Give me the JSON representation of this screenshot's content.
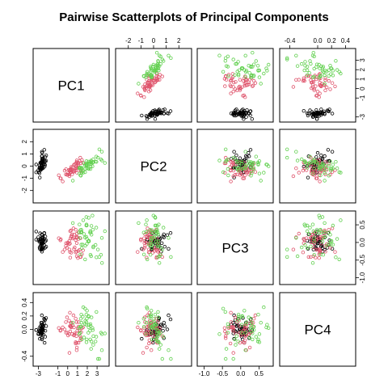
{
  "chart_data": {
    "type": "scatter",
    "title": "Pairwise Scatterplots of Principal Components",
    "variables": [
      "PC1",
      "PC2",
      "PC3",
      "PC4"
    ],
    "axis_ticks": {
      "PC1": [
        -3,
        -1,
        0,
        1,
        2,
        3
      ],
      "PC2": [
        -2,
        -1,
        0,
        1,
        2
      ],
      "PC3": [
        -1.0,
        -0.5,
        0.0,
        0.5
      ],
      "PC4": [
        -0.4,
        0.0,
        0.2,
        0.4
      ]
    },
    "axis_tick_labels": {
      "PC1": [
        "-3",
        "-1",
        "0",
        "1",
        "2",
        "3"
      ],
      "PC2": [
        "-2",
        "-1",
        "0",
        "1",
        "2"
      ],
      "PC3": [
        "-1.0",
        "-0.5",
        "0.0",
        "0.5"
      ],
      "PC4": [
        "-0.4",
        "0.0",
        "0.2",
        "0.4"
      ]
    },
    "axis_ranges": {
      "PC1": [
        -3.2,
        3.9
      ],
      "PC2": [
        -2.75,
        2.75
      ],
      "PC3": [
        -1.1,
        0.8
      ],
      "PC4": [
        -0.5,
        0.5
      ]
    },
    "series_colors": [
      "#000000",
      "#DF536B",
      "#61D04F"
    ],
    "series": [
      {
        "color": "#000000",
        "points": [
          [
            -2.68,
            0.32,
            -0.03,
            0.0
          ],
          [
            -2.71,
            -0.18,
            -0.21,
            0.1
          ],
          [
            -2.89,
            -0.14,
            0.02,
            0.02
          ],
          [
            -2.75,
            -0.32,
            0.03,
            -0.08
          ],
          [
            -2.73,
            0.33,
            0.09,
            -0.06
          ],
          [
            -2.28,
            0.74,
            0.17,
            -0.02
          ],
          [
            -2.82,
            -0.09,
            0.26,
            -0.05
          ],
          [
            -2.63,
            0.16,
            -0.02,
            -0.05
          ],
          [
            -2.89,
            -0.58,
            0.02,
            -0.03
          ],
          [
            -2.67,
            -0.11,
            -0.2,
            -0.06
          ],
          [
            -2.51,
            0.65,
            -0.02,
            0.05
          ],
          [
            -2.61,
            0.01,
            0.05,
            -0.15
          ],
          [
            -2.79,
            -0.24,
            -0.1,
            0.05
          ],
          [
            -3.22,
            -0.51,
            0.08,
            -0.01
          ],
          [
            -2.64,
            1.18,
            -0.18,
            0.21
          ],
          [
            -2.39,
            1.34,
            0.27,
            0.15
          ],
          [
            -2.62,
            0.82,
            0.14,
            0.1
          ],
          [
            -2.65,
            0.31,
            0.03,
            0.02
          ],
          [
            -2.2,
            0.88,
            -0.12,
            0.05
          ],
          [
            -2.59,
            0.51,
            0.1,
            -0.01
          ],
          [
            -2.31,
            0.39,
            -0.15,
            0.14
          ],
          [
            -2.54,
            0.43,
            0.15,
            0.0
          ],
          [
            -3.22,
            0.13,
            0.31,
            -0.01
          ],
          [
            -2.3,
            0.1,
            0.03,
            -0.11
          ],
          [
            -2.36,
            -0.04,
            0.1,
            -0.2
          ],
          [
            -2.51,
            -0.15,
            -0.19,
            -0.02
          ],
          [
            -2.47,
            0.13,
            0.06,
            -0.08
          ],
          [
            -2.56,
            0.36,
            -0.01,
            0.01
          ],
          [
            -2.64,
            0.31,
            -0.07,
            0.06
          ],
          [
            -2.63,
            -0.19,
            0.06,
            -0.07
          ],
          [
            -2.59,
            -0.2,
            -0.02,
            0.01
          ],
          [
            -2.41,
            0.41,
            -0.07,
            0.16
          ],
          [
            -2.65,
            0.81,
            0.23,
            -0.13
          ],
          [
            -2.6,
            1.09,
            0.21,
            0.0
          ],
          [
            -2.67,
            -0.12,
            -0.16,
            -0.02
          ],
          [
            -2.87,
            0.07,
            -0.14,
            -0.03
          ],
          [
            -2.63,
            0.6,
            -0.26,
            0.07
          ],
          [
            -2.8,
            0.27,
            0.1,
            0.0
          ],
          [
            -2.98,
            -0.49,
            0.07,
            -0.06
          ],
          [
            -2.59,
            0.23,
            0.06,
            0.04
          ],
          [
            -2.77,
            0.26,
            0.1,
            -0.08
          ],
          [
            -2.85,
            -0.94,
            -0.18,
            -0.14
          ],
          [
            -3.0,
            -0.34,
            0.15,
            -0.07
          ],
          [
            -2.41,
            0.19,
            0.26,
            0.09
          ],
          [
            -2.21,
            0.44,
            0.06,
            0.17
          ],
          [
            -2.71,
            -0.25,
            -0.05,
            -0.04
          ],
          [
            -2.54,
            0.5,
            0.1,
            0.03
          ],
          [
            -2.84,
            -0.23,
            0.05,
            -0.03
          ],
          [
            -2.54,
            0.58,
            -0.16,
            0.07
          ],
          [
            -2.7,
            0.11,
            -0.02,
            -0.05
          ]
        ]
      },
      {
        "color": "#DF536B",
        "points": [
          [
            1.28,
            0.69,
            -0.41,
            -0.1
          ],
          [
            0.93,
            0.32,
            -0.02,
            -0.2
          ],
          [
            1.46,
            0.5,
            -0.33,
            0.02
          ],
          [
            0.18,
            -0.83,
            -0.2,
            -0.35
          ],
          [
            1.09,
            0.07,
            -0.24,
            0.04
          ],
          [
            0.64,
            -0.42,
            0.14,
            -0.09
          ],
          [
            1.1,
            0.28,
            0.1,
            -0.2
          ],
          [
            -0.75,
            -1.0,
            0.06,
            -0.02
          ],
          [
            1.04,
            0.23,
            -0.44,
            0.02
          ],
          [
            -0.01,
            -0.72,
            -0.02,
            -0.05
          ],
          [
            -0.51,
            -1.26,
            -0.27,
            0.03
          ],
          [
            0.51,
            -0.1,
            0.11,
            0.06
          ],
          [
            0.26,
            -0.55,
            -0.43,
            -0.03
          ],
          [
            0.98,
            -0.12,
            0.15,
            -0.02
          ],
          [
            -0.17,
            -0.25,
            -0.02,
            -0.05
          ],
          [
            0.93,
            0.47,
            -0.39,
            -0.06
          ],
          [
            0.66,
            -0.35,
            0.22,
            -0.08
          ],
          [
            0.23,
            -0.33,
            -0.27,
            0.25
          ],
          [
            0.94,
            -0.54,
            0.25,
            -0.27
          ],
          [
            0.04,
            -0.58,
            0.0,
            -0.09
          ],
          [
            1.12,
            -0.08,
            0.29,
            0.11
          ],
          [
            0.36,
            -0.07,
            -0.29,
            0.03
          ],
          [
            1.3,
            -0.33,
            0.12,
            -0.16
          ],
          [
            0.92,
            -0.18,
            0.15,
            -0.31
          ],
          [
            0.71,
            0.15,
            -0.14,
            -0.06
          ],
          [
            0.9,
            0.33,
            -0.26,
            0.11
          ],
          [
            1.33,
            0.24,
            -0.41,
            -0.13
          ],
          [
            1.56,
            0.27,
            -0.22,
            0.03
          ],
          [
            0.81,
            -0.16,
            0.07,
            -0.19
          ],
          [
            -0.31,
            -0.37,
            -0.2,
            0.0
          ],
          [
            -0.07,
            -0.7,
            -0.15,
            0.18
          ],
          [
            -0.19,
            -0.68,
            -0.1,
            0.11
          ],
          [
            0.14,
            -0.31,
            -0.05,
            0.13
          ],
          [
            1.38,
            -0.42,
            0.29,
            -0.04
          ],
          [
            0.59,
            -0.48,
            0.4,
            0.21
          ],
          [
            0.81,
            0.2,
            0.36,
            0.16
          ],
          [
            1.22,
            0.41,
            -0.21,
            -0.02
          ],
          [
            0.81,
            -0.37,
            -0.28,
            -0.21
          ],
          [
            0.25,
            -0.27,
            0.32,
            0.05
          ],
          [
            0.16,
            -0.68,
            0.04,
            -0.07
          ],
          [
            0.46,
            -0.67,
            0.23,
            -0.07
          ],
          [
            0.89,
            -0.03,
            0.13,
            -0.1
          ],
          [
            0.23,
            -0.4,
            -0.03,
            0.05
          ],
          [
            -0.71,
            -1.01,
            0.09,
            -0.01
          ],
          [
            0.36,
            -0.5,
            0.16,
            0.04
          ],
          [
            0.33,
            -0.21,
            0.34,
            0.1
          ],
          [
            0.38,
            -0.29,
            0.19,
            0.09
          ],
          [
            0.64,
            0.11,
            -0.19,
            0.03
          ],
          [
            -0.91,
            -0.75,
            0.12,
            0.02
          ],
          [
            0.3,
            -0.35,
            0.12,
            0.05
          ]
        ]
      },
      {
        "color": "#61D04F",
        "points": [
          [
            2.53,
            -0.01,
            0.76,
            0.02
          ],
          [
            1.41,
            -0.57,
            0.3,
            0.1
          ],
          [
            2.62,
            0.34,
            -0.11,
            -0.1
          ],
          [
            1.97,
            -0.18,
            0.1,
            0.28
          ],
          [
            2.35,
            -0.04,
            0.28,
            0.05
          ],
          [
            3.4,
            0.55,
            -0.35,
            -0.05
          ],
          [
            0.52,
            -1.19,
            0.55,
            0.1
          ],
          [
            2.93,
            0.35,
            -0.42,
            0.26
          ],
          [
            2.32,
            -0.24,
            -0.35,
            0.08
          ],
          [
            2.92,
            0.78,
            0.42,
            -0.11
          ],
          [
            1.66,
            0.24,
            0.24,
            -0.12
          ],
          [
            1.8,
            -0.22,
            -0.09,
            0.13
          ],
          [
            2.17,
            0.22,
            0.03,
            0.07
          ],
          [
            1.34,
            -0.78,
            0.28,
            0.16
          ],
          [
            1.59,
            -0.54,
            0.63,
            0.33
          ],
          [
            1.9,
            0.12,
            0.48,
            0.22
          ],
          [
            1.95,
            0.04,
            -0.04,
            0.16
          ],
          [
            3.49,
            1.18,
            0.13,
            -0.31
          ],
          [
            3.8,
            0.26,
            0.32,
            -0.06
          ],
          [
            1.3,
            -0.76,
            -0.34,
            0.04
          ],
          [
            2.43,
            0.38,
            0.22,
            0.18
          ],
          [
            1.2,
            -0.61,
            0.51,
            -0.07
          ],
          [
            3.5,
            0.46,
            -0.58,
            -0.07
          ],
          [
            1.39,
            -0.2,
            -0.06,
            0.22
          ],
          [
            2.28,
            0.33,
            0.28,
            -0.02
          ],
          [
            2.61,
            0.56,
            -0.14,
            -0.23
          ],
          [
            1.26,
            -0.18,
            0.13,
            -0.05
          ],
          [
            1.29,
            -0.12,
            0.35,
            0.04
          ],
          [
            2.12,
            -0.21,
            0.04,
            0.2
          ],
          [
            2.39,
            0.46,
            -0.39,
            -0.29
          ],
          [
            2.84,
            0.37,
            -0.07,
            -0.18
          ],
          [
            3.23,
            1.37,
            -0.41,
            -0.44
          ],
          [
            2.16,
            -0.22,
            0.05,
            0.19
          ],
          [
            1.44,
            -0.14,
            -0.16,
            -0.15
          ],
          [
            1.78,
            -0.5,
            -0.48,
            0.31
          ],
          [
            3.08,
            0.69,
            -0.2,
            -0.44
          ],
          [
            2.14,
            0.14,
            0.7,
            0.03
          ],
          [
            1.9,
            0.05,
            0.16,
            0.11
          ],
          [
            1.17,
            -0.16,
            0.28,
            0.02
          ],
          [
            2.11,
            0.37,
            0.03,
            -0.05
          ],
          [
            2.31,
            0.18,
            0.32,
            -0.15
          ],
          [
            1.92,
            0.41,
            0.51,
            -0.19
          ],
          [
            1.41,
            -0.57,
            0.3,
            0.1
          ],
          [
            2.56,
            0.28,
            0.36,
            -0.01
          ],
          [
            2.42,
            0.3,
            0.47,
            -0.18
          ],
          [
            1.94,
            0.19,
            0.48,
            -0.15
          ],
          [
            1.53,
            -0.38,
            -0.06,
            0.19
          ],
          [
            1.76,
            0.08,
            0.14,
            0.08
          ],
          [
            1.9,
            0.12,
            0.72,
            0.07
          ],
          [
            1.39,
            -0.28,
            0.36,
            0.04
          ]
        ]
      }
    ],
    "grid": false,
    "legend": "none"
  }
}
